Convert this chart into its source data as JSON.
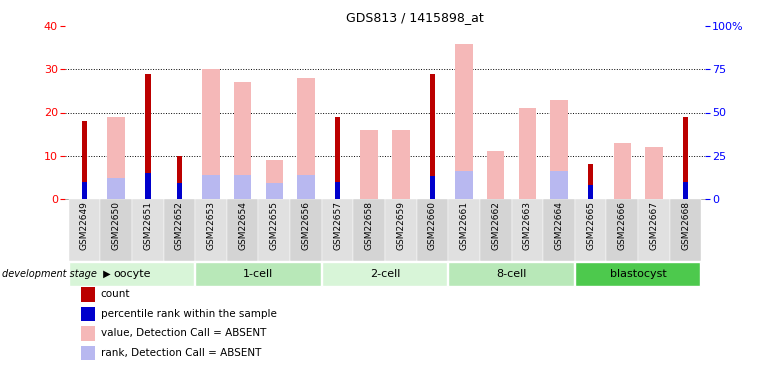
{
  "title": "GDS813 / 1415898_at",
  "samples": [
    "GSM22649",
    "GSM22650",
    "GSM22651",
    "GSM22652",
    "GSM22653",
    "GSM22654",
    "GSM22655",
    "GSM22656",
    "GSM22657",
    "GSM22658",
    "GSM22659",
    "GSM22660",
    "GSM22661",
    "GSM22662",
    "GSM22663",
    "GSM22664",
    "GSM22665",
    "GSM22666",
    "GSM22667",
    "GSM22668"
  ],
  "count_values": [
    18,
    0,
    29,
    10,
    0,
    0,
    0,
    0,
    19,
    0,
    0,
    29,
    0,
    0,
    0,
    0,
    8,
    0,
    0,
    19
  ],
  "rank_values": [
    10,
    0,
    15,
    9,
    0,
    0,
    0,
    0,
    10,
    0,
    0,
    13,
    0,
    0,
    0,
    0,
    8,
    0,
    0,
    10
  ],
  "absent_value": [
    0,
    19,
    0,
    0,
    30,
    27,
    9,
    28,
    0,
    16,
    16,
    0,
    36,
    11,
    21,
    23,
    0,
    13,
    12,
    0
  ],
  "absent_rank": [
    0,
    12,
    0,
    0,
    14,
    14,
    9,
    14,
    0,
    0,
    0,
    0,
    16,
    0,
    0,
    16,
    0,
    0,
    0,
    0
  ],
  "stages": [
    {
      "label": "oocyte",
      "start": 0,
      "end": 4
    },
    {
      "label": "1-cell",
      "start": 4,
      "end": 8
    },
    {
      "label": "2-cell",
      "start": 8,
      "end": 12
    },
    {
      "label": "8-cell",
      "start": 12,
      "end": 16
    },
    {
      "label": "blastocyst",
      "start": 16,
      "end": 20
    }
  ],
  "stage_colors": [
    "#d8f5d8",
    "#b8e8b8",
    "#d8f5d8",
    "#b8e8b8",
    "#4dc94d"
  ],
  "ylim_left": [
    0,
    40
  ],
  "ylim_right": [
    0,
    100
  ],
  "color_count": "#bb0000",
  "color_rank": "#0000cc",
  "color_absent_value": "#f5b8b8",
  "color_absent_rank": "#b8b8f0",
  "yticks_left": [
    0,
    10,
    20,
    30,
    40
  ],
  "yticks_right": [
    0,
    25,
    50,
    75,
    100
  ],
  "grid_lines": [
    10,
    20,
    30
  ]
}
